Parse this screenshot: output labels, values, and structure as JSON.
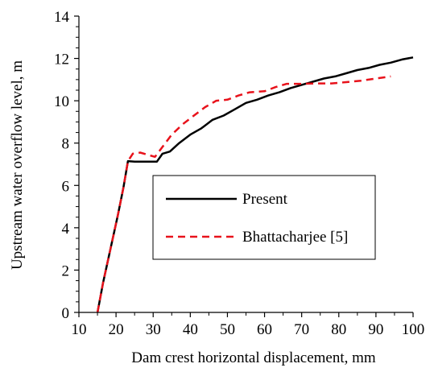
{
  "chart_data": {
    "type": "line",
    "title": "",
    "xlabel": "Dam crest horizontal displacement, mm",
    "ylabel": "Upstream water overflow level, m",
    "xlim": [
      10,
      100
    ],
    "ylim": [
      0,
      14
    ],
    "xticks": [
      10,
      20,
      30,
      40,
      50,
      60,
      70,
      80,
      90,
      100
    ],
    "yticks": [
      0,
      2,
      4,
      6,
      8,
      10,
      12,
      14
    ],
    "grid": false,
    "legend_position": "center-right",
    "series": [
      {
        "name": "Present",
        "color": "#000000",
        "style": "solid",
        "points": [
          [
            15.0,
            0.0
          ],
          [
            16.5,
            1.4
          ],
          [
            18.5,
            3.0
          ],
          [
            20.5,
            4.6
          ],
          [
            22.0,
            5.9
          ],
          [
            23.2,
            7.15
          ],
          [
            25.0,
            7.12
          ],
          [
            28.0,
            7.12
          ],
          [
            31.0,
            7.12
          ],
          [
            32.5,
            7.5
          ],
          [
            34.5,
            7.6
          ],
          [
            37.0,
            8.0
          ],
          [
            40.0,
            8.4
          ],
          [
            43.0,
            8.7
          ],
          [
            46.0,
            9.1
          ],
          [
            49.0,
            9.3
          ],
          [
            52.0,
            9.6
          ],
          [
            55.0,
            9.9
          ],
          [
            58.0,
            10.05
          ],
          [
            61.0,
            10.25
          ],
          [
            64.0,
            10.4
          ],
          [
            67.0,
            10.6
          ],
          [
            70.0,
            10.75
          ],
          [
            73.0,
            10.9
          ],
          [
            76.0,
            11.05
          ],
          [
            79.0,
            11.15
          ],
          [
            82.0,
            11.3
          ],
          [
            85.0,
            11.45
          ],
          [
            88.0,
            11.55
          ],
          [
            91.0,
            11.7
          ],
          [
            94.0,
            11.8
          ],
          [
            97.0,
            11.95
          ],
          [
            100.0,
            12.05
          ]
        ]
      },
      {
        "name": "Bhattacharjee [5]",
        "color": "#e8121b",
        "style": "dashed",
        "points": [
          [
            15.0,
            0.0
          ],
          [
            16.5,
            1.4
          ],
          [
            18.5,
            3.0
          ],
          [
            20.5,
            4.6
          ],
          [
            22.0,
            5.9
          ],
          [
            23.2,
            7.15
          ],
          [
            24.5,
            7.5
          ],
          [
            26.5,
            7.55
          ],
          [
            28.5,
            7.45
          ],
          [
            30.5,
            7.35
          ],
          [
            32.0,
            7.7
          ],
          [
            35.0,
            8.4
          ],
          [
            38.0,
            8.9
          ],
          [
            41.0,
            9.3
          ],
          [
            44.0,
            9.7
          ],
          [
            47.0,
            10.0
          ],
          [
            50.0,
            10.05
          ],
          [
            53.0,
            10.25
          ],
          [
            56.0,
            10.4
          ],
          [
            60.0,
            10.45
          ],
          [
            63.0,
            10.65
          ],
          [
            66.0,
            10.8
          ],
          [
            70.0,
            10.8
          ],
          [
            74.0,
            10.82
          ],
          [
            78.0,
            10.82
          ],
          [
            82.0,
            10.88
          ],
          [
            86.0,
            10.95
          ],
          [
            90.0,
            11.05
          ],
          [
            94.0,
            11.15
          ]
        ]
      }
    ]
  }
}
